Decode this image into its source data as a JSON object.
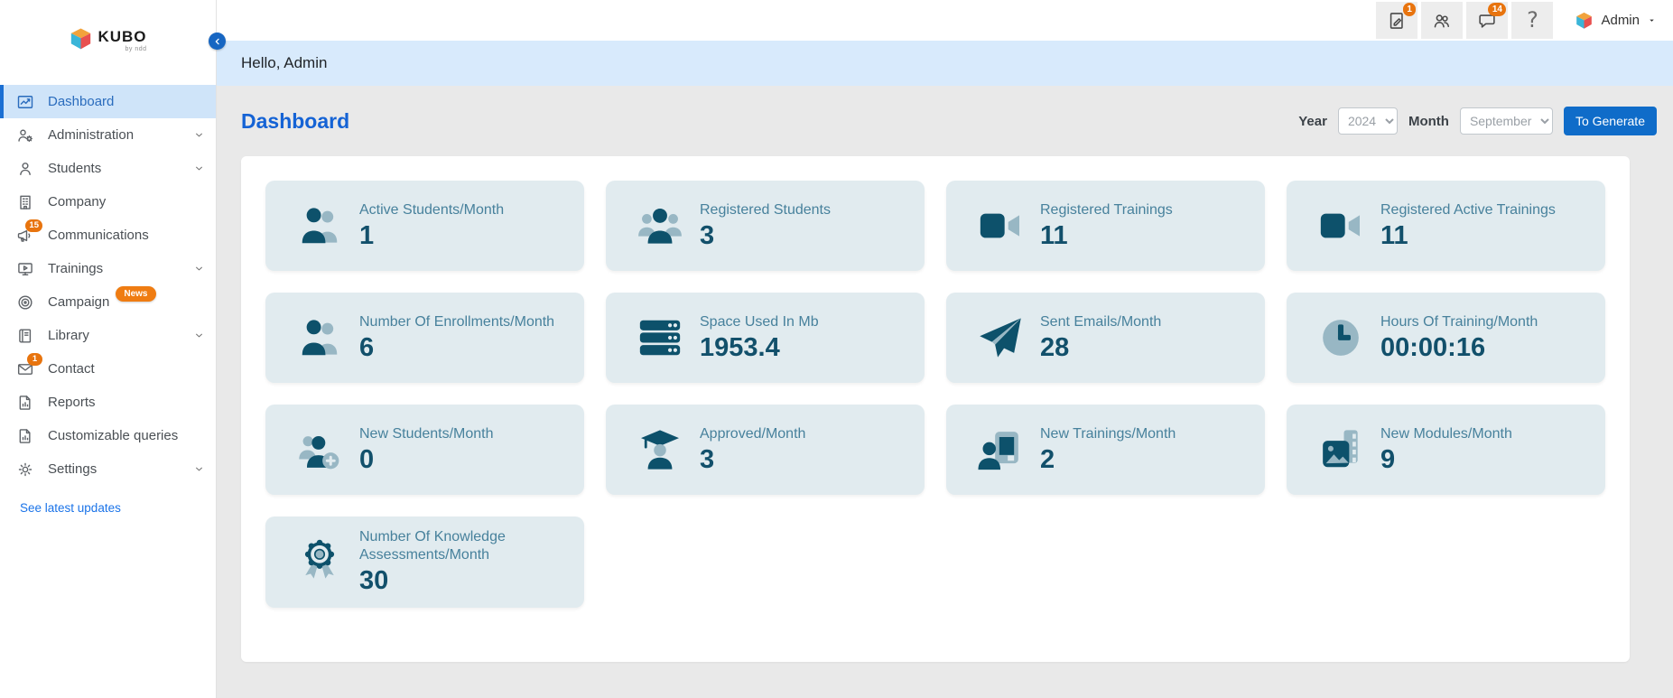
{
  "brand": {
    "name": "KUBO",
    "byline": "by ndd"
  },
  "topbar": {
    "actions": [
      {
        "icon": "document-pen-icon",
        "badge": "1"
      },
      {
        "icon": "users-icon"
      },
      {
        "icon": "chat-icon",
        "badge": "14"
      },
      {
        "icon": "help-icon"
      }
    ],
    "user": {
      "name": "Admin"
    }
  },
  "sidebar": {
    "items": [
      {
        "label": "Dashboard",
        "icon": "chart-line-icon",
        "active": true
      },
      {
        "label": "Administration",
        "icon": "users-gear-icon",
        "chevron": true
      },
      {
        "label": "Students",
        "icon": "user-icon",
        "chevron": true
      },
      {
        "label": "Company",
        "icon": "building-icon"
      },
      {
        "label": "Communications",
        "icon": "megaphone-icon",
        "badge": "15"
      },
      {
        "label": "Trainings",
        "icon": "screen-play-icon",
        "chevron": true
      },
      {
        "label": "Campaign",
        "icon": "target-icon",
        "pill": "News"
      },
      {
        "label": "Library",
        "icon": "book-icon",
        "chevron": true
      },
      {
        "label": "Contact",
        "icon": "envelope-icon",
        "badge": "1"
      },
      {
        "label": "Reports",
        "icon": "file-report-icon"
      },
      {
        "label": "Customizable queries",
        "icon": "file-report-icon"
      },
      {
        "label": "Settings",
        "icon": "gear-icon",
        "chevron": true
      }
    ],
    "footer_link": "See latest updates"
  },
  "greeting": "Hello, Admin",
  "page": {
    "title": "Dashboard",
    "filters": {
      "year_label": "Year",
      "year_value": "2024",
      "month_label": "Month",
      "month_value": "September",
      "generate_label": "To Generate"
    }
  },
  "cards": [
    {
      "label": "Active Students/Month",
      "value": "1",
      "icon": "users-duo-icon"
    },
    {
      "label": "Registered Students",
      "value": "3",
      "icon": "users-group-icon"
    },
    {
      "label": "Registered Trainings",
      "value": "11",
      "icon": "video-icon"
    },
    {
      "label": "Registered Active Trainings",
      "value": "11",
      "icon": "video-icon"
    },
    {
      "label": "Number Of Enrollments/Month",
      "value": "6",
      "icon": "users-duo-icon"
    },
    {
      "label": "Space Used In Mb",
      "value": "1953.4",
      "icon": "server-icon"
    },
    {
      "label": "Sent Emails/Month",
      "value": "28",
      "icon": "send-icon"
    },
    {
      "label": "Hours Of Training/Month",
      "value": "00:00:16",
      "icon": "clock-icon"
    },
    {
      "label": "New Students/Month",
      "value": "0",
      "icon": "user-plus-icon"
    },
    {
      "label": "Approved/Month",
      "value": "3",
      "icon": "graduate-icon"
    },
    {
      "label": "New Trainings/Month",
      "value": "2",
      "icon": "trainer-icon"
    },
    {
      "label": "New Modules/Month",
      "value": "9",
      "icon": "modules-icon"
    },
    {
      "label": "Number Of Knowledge Assessments/Month",
      "value": "30",
      "icon": "medal-icon"
    }
  ],
  "colors": {
    "accent_blue": "#1563d5",
    "badge_orange": "#e8740e",
    "news_pill_orange": "#ef7c12",
    "card_bg": "#e1ebef",
    "icon_dark": "#0d516b",
    "icon_light": "#98b7c4",
    "hello_bg": "#d8eafc",
    "active_item_bg": "#cfe4f9",
    "button_blue": "#0f6cc9"
  }
}
